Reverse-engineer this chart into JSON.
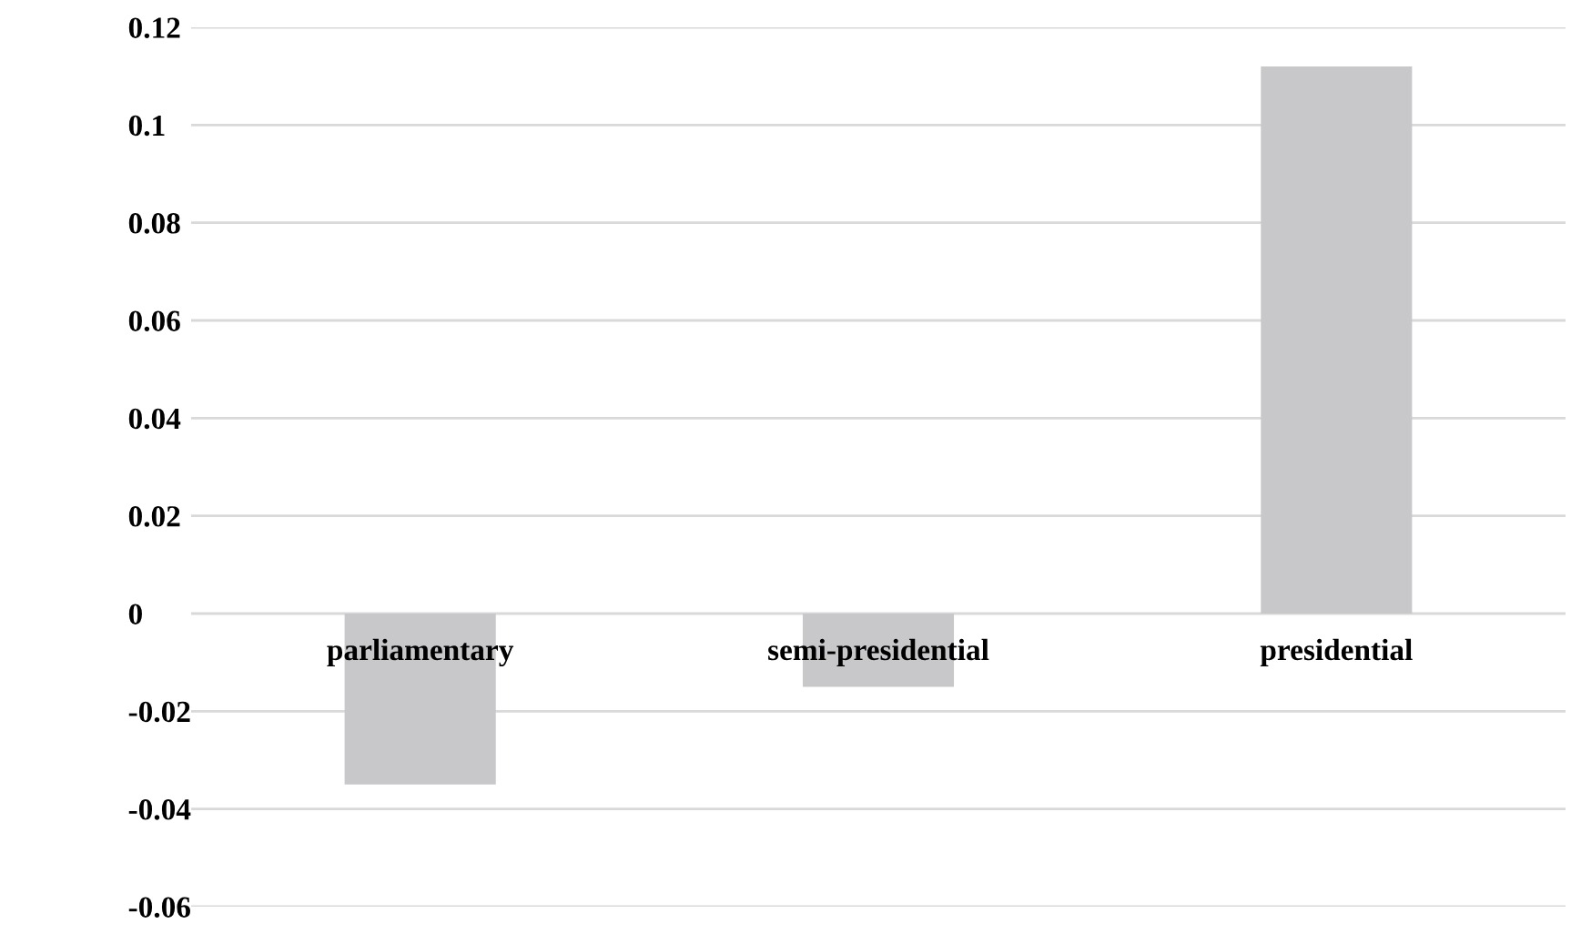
{
  "chart_data": {
    "type": "bar",
    "categories": [
      "parliamentary",
      "semi-presidential",
      "presidential"
    ],
    "series": [
      {
        "color": "#c8c8ca",
        "values": [
          -0.035,
          -0.015,
          0.112
        ]
      }
    ],
    "ylim": [
      -0.06,
      0.12
    ],
    "yticks": [
      {
        "value": -0.06,
        "label": "-0.06"
      },
      {
        "value": -0.04,
        "label": "-0.04"
      },
      {
        "value": -0.02,
        "label": "-0.02"
      },
      {
        "value": 0,
        "label": "0"
      },
      {
        "value": 0.02,
        "label": "0.02"
      },
      {
        "value": 0.04,
        "label": "0.04"
      },
      {
        "value": 0.06,
        "label": "0.06"
      },
      {
        "value": 0.08,
        "label": "0.08"
      },
      {
        "value": 0.1,
        "label": "0.1"
      },
      {
        "value": 0.12,
        "label": "0.12"
      }
    ],
    "grid": "y",
    "legend": false
  }
}
